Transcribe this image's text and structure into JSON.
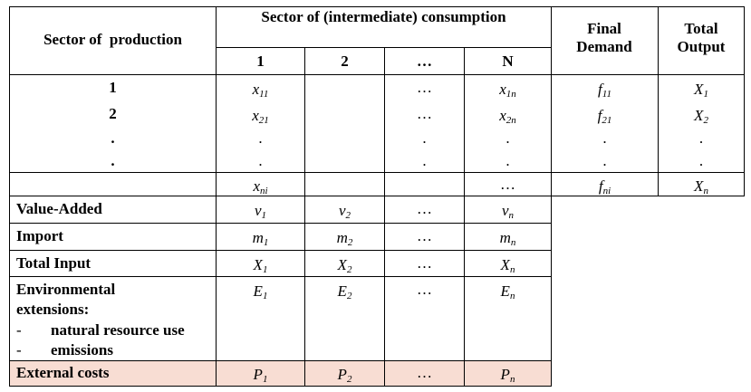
{
  "header": {
    "sector_production": "Sector of  production",
    "sector_consumption": "Sector of (intermediate) consumption",
    "final_demand": "Final Demand",
    "total_output": "Total Output",
    "cols": [
      "1",
      "2",
      "…",
      "N"
    ]
  },
  "rows": {
    "r1": {
      "label": "1",
      "c1": "x",
      "c1s": "11",
      "c3": "…",
      "c4": "x",
      "c4s": "1n",
      "fd": "f",
      "fds": "11",
      "to": "X",
      "tos": "1"
    },
    "r2": {
      "label": "2",
      "c1": "x",
      "c1s": "21",
      "c3": "…",
      "c4": "x",
      "c4s": "2n",
      "fd": "f",
      "fds": "21",
      "to": "X",
      "tos": "2"
    },
    "r3": {
      "label": ".",
      "dot": "."
    },
    "r4": {
      "label": ".",
      "dot": "."
    },
    "r5": {
      "c1": "x",
      "c1s": "ni",
      "c4": "…",
      "fd": "f",
      "fds": "ni",
      "to": "X",
      "tos": "n"
    }
  },
  "lower": {
    "value_added": {
      "label": "Value-Added",
      "v1": "v",
      "s1": "1",
      "v2": "v",
      "s2": "2",
      "v3": "…",
      "v4": "v",
      "s4": "n"
    },
    "import": {
      "label": "Import",
      "v1": "m",
      "s1": "1",
      "v2": "m",
      "s2": "2",
      "v3": "…",
      "v4": "m",
      "s4": "n"
    },
    "total_input": {
      "label": "Total Input",
      "v1": "X",
      "s1": "1",
      "v2": "X",
      "s2": "2",
      "v3": "…",
      "v4": "X",
      "s4": "n"
    },
    "environmental": {
      "label1": "Environmental",
      "label2": "extensions:",
      "item1_dash": "-",
      "item1": "natural resource use",
      "item2_dash": "-",
      "item2": "emissions",
      "v1": "E",
      "s1": "1",
      "v2": "E",
      "s2": "2",
      "v3": "…",
      "v4": "E",
      "s4": "n"
    },
    "external_costs": {
      "label": "External costs",
      "v1": "P",
      "s1": "1",
      "v2": "P",
      "s2": "2",
      "v3": "…",
      "v4": "P",
      "s4": "n",
      "highlight": "#f8ddd3"
    }
  }
}
